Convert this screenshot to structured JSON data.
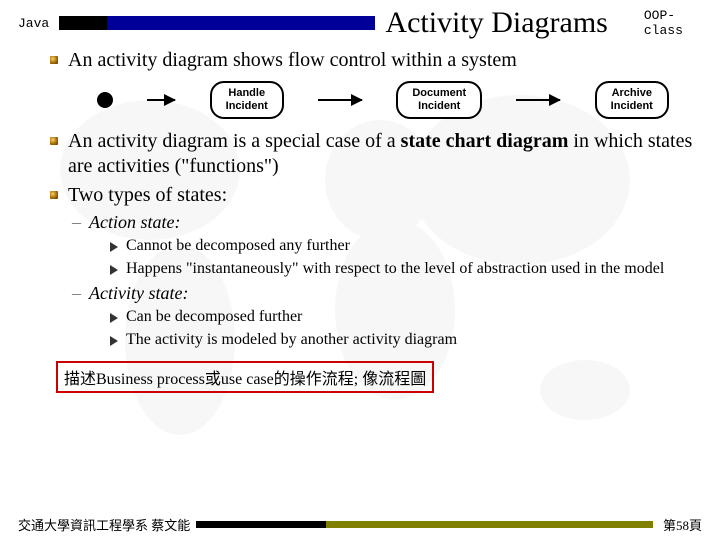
{
  "header": {
    "left": "Java",
    "title": "Activity Diagrams",
    "right": "OOP-class",
    "bar_left_color": "#000000",
    "bar_blue_color": "#000099"
  },
  "bullets": [
    "An activity diagram shows flow control within a system",
    "An activity diagram is a special case of a <b>state chart diagram</b> in which states are activities (\"functions\")",
    "Two types of states:"
  ],
  "diagram": {
    "nodes": [
      "Handle<br>Incident",
      "Document<br>Incident",
      "Archive<br>Incident"
    ]
  },
  "substates": [
    {
      "label": "Action state:",
      "items": [
        "Cannot be decomposed any further",
        "Happens \"instantaneously\" with respect to the level of abstraction used in the model"
      ]
    },
    {
      "label": "Activity state:",
      "items": [
        "Can be decomposed further",
        "The activity is modeled by another activity diagram"
      ]
    }
  ],
  "note": "描述Business process或use case的操作流程; 像流程圖",
  "footer": {
    "left": "交通大學資訊工程學系 蔡文能",
    "right": "第58頁",
    "bar_dark_color": "#000000",
    "bar_olive_color": "#808000"
  }
}
